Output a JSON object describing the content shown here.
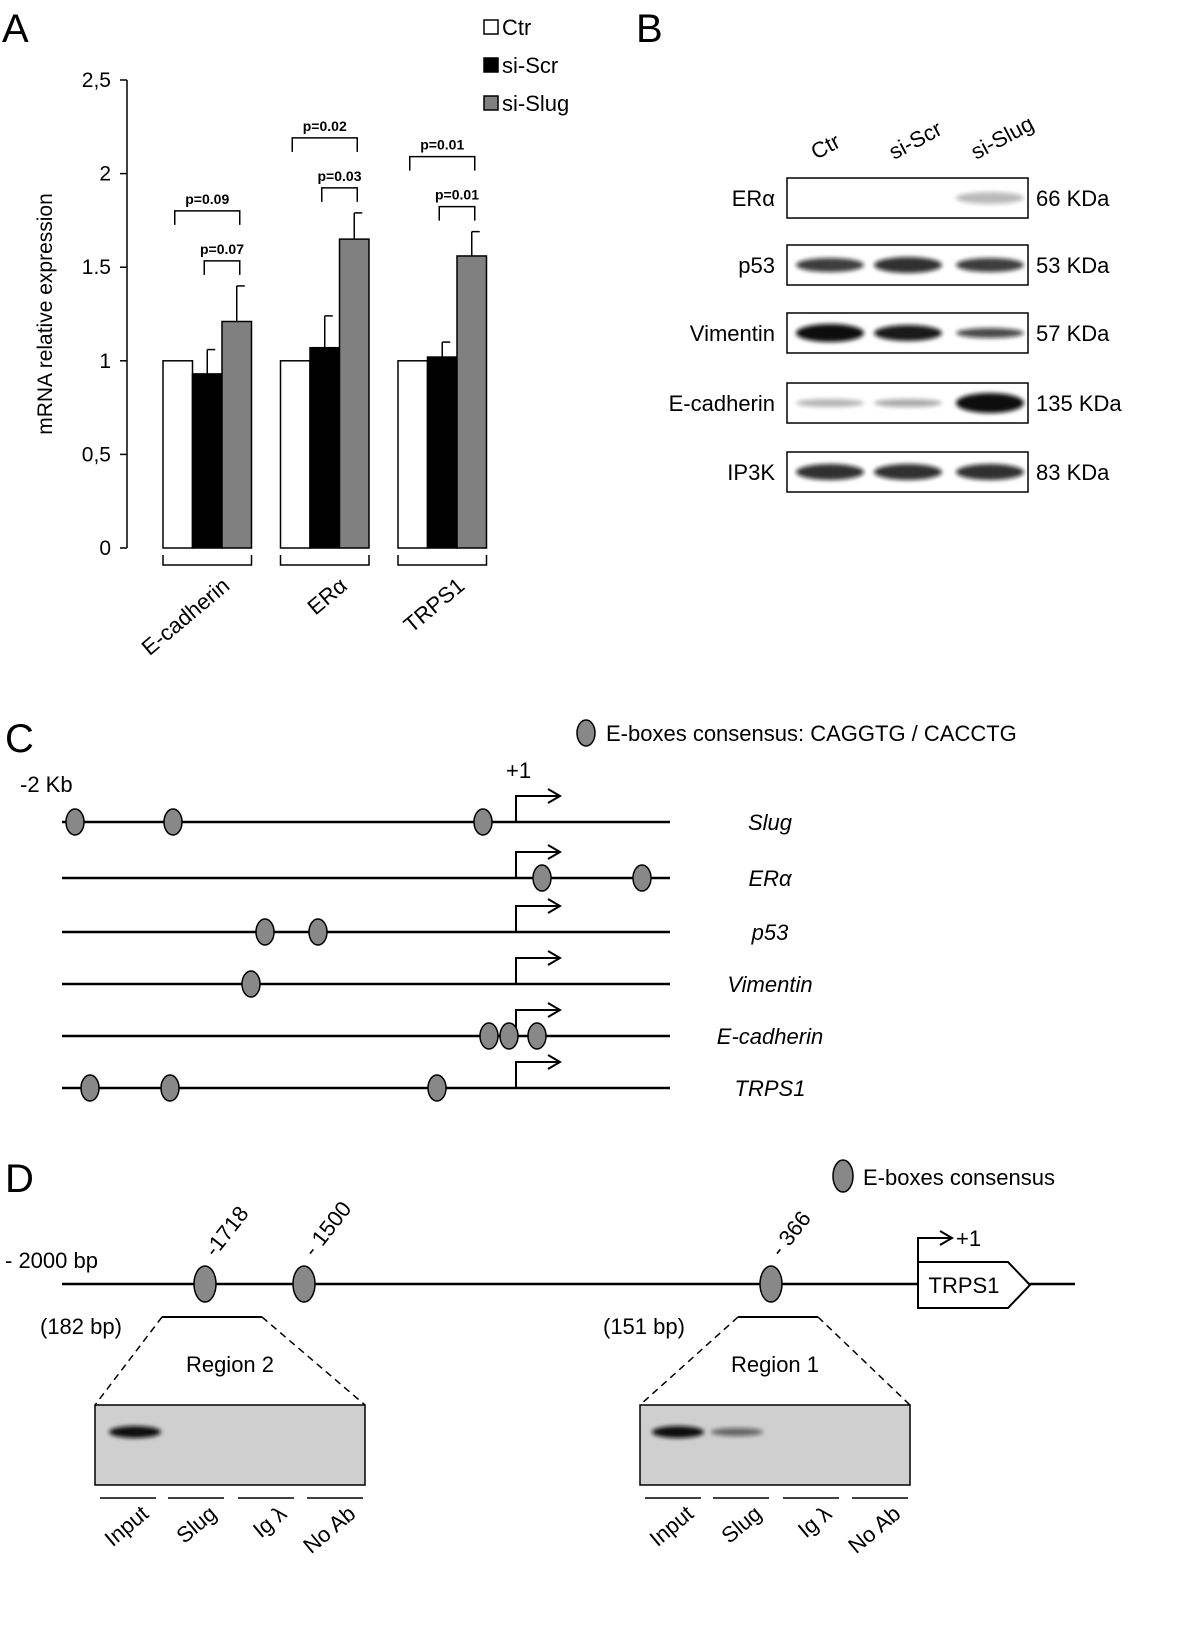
{
  "panel_labels": [
    "A",
    "B",
    "C",
    "D"
  ],
  "chart_data": {
    "type": "bar",
    "ylabel": "mRNA relative expression",
    "categories": [
      "E-cadherin",
      "ERα",
      "TRPS1"
    ],
    "series": [
      {
        "name": "Ctr",
        "color": "#ffffff",
        "values": [
          1,
          1,
          1
        ]
      },
      {
        "name": "si-Scr",
        "color": "#000000",
        "values": [
          0.93,
          1.07,
          1.02
        ],
        "errors": [
          0.13,
          0.17,
          0.08
        ]
      },
      {
        "name": "si-Slug",
        "color": "#808080",
        "values": [
          1.21,
          1.65,
          1.56
        ],
        "errors": [
          0.19,
          0.14,
          0.13
        ]
      }
    ],
    "ylim": [
      0,
      2.5
    ],
    "yticks": [
      0,
      {
        "value": 0.5,
        "label": "0,5"
      },
      1,
      1.5,
      2,
      {
        "value": 2.5,
        "label": "2,5"
      }
    ],
    "annotations": [
      [
        "p=0.09",
        "p=0.07"
      ],
      [
        "p=0.02",
        "p=0.03"
      ],
      [
        "p=0.01",
        "p=0.01"
      ]
    ]
  },
  "western_blot": {
    "lanes": [
      "Ctr",
      "si-Scr",
      "si-Slug"
    ],
    "rows": [
      {
        "protein": "ERα",
        "size": "66 KDa"
      },
      {
        "protein": "p53",
        "size": "53 KDa"
      },
      {
        "protein": "Vimentin",
        "size": "57 KDa"
      },
      {
        "protein": "E-cadherin",
        "size": "135 KDa"
      },
      {
        "protein": "IP3K",
        "size": "83 KDa"
      }
    ]
  },
  "promoter_map": {
    "legend": "E-boxes consensus: CAGGTG / CACCTG",
    "start_label": "-2 Kb",
    "tss_label": "+1",
    "genes": [
      "Slug",
      "ERα",
      "p53",
      "Vimentin",
      "E-cadherin",
      "TRPS1"
    ]
  },
  "chip": {
    "legend": "E-boxes consensus",
    "start_label": "- 2000 bp",
    "tss_label": "+1",
    "gene": "TRPS1",
    "ebox_labels": [
      "-1718",
      "- 1500",
      "- 366"
    ],
    "regions": [
      {
        "size": "(182 bp)",
        "name": "Region 2",
        "lanes": [
          "Input",
          "Slug",
          "Ig λ",
          "No Ab"
        ]
      },
      {
        "size": "(151 bp)",
        "name": "Region 1",
        "lanes": [
          "Input",
          "Slug",
          "Ig λ",
          "No Ab"
        ]
      }
    ]
  }
}
